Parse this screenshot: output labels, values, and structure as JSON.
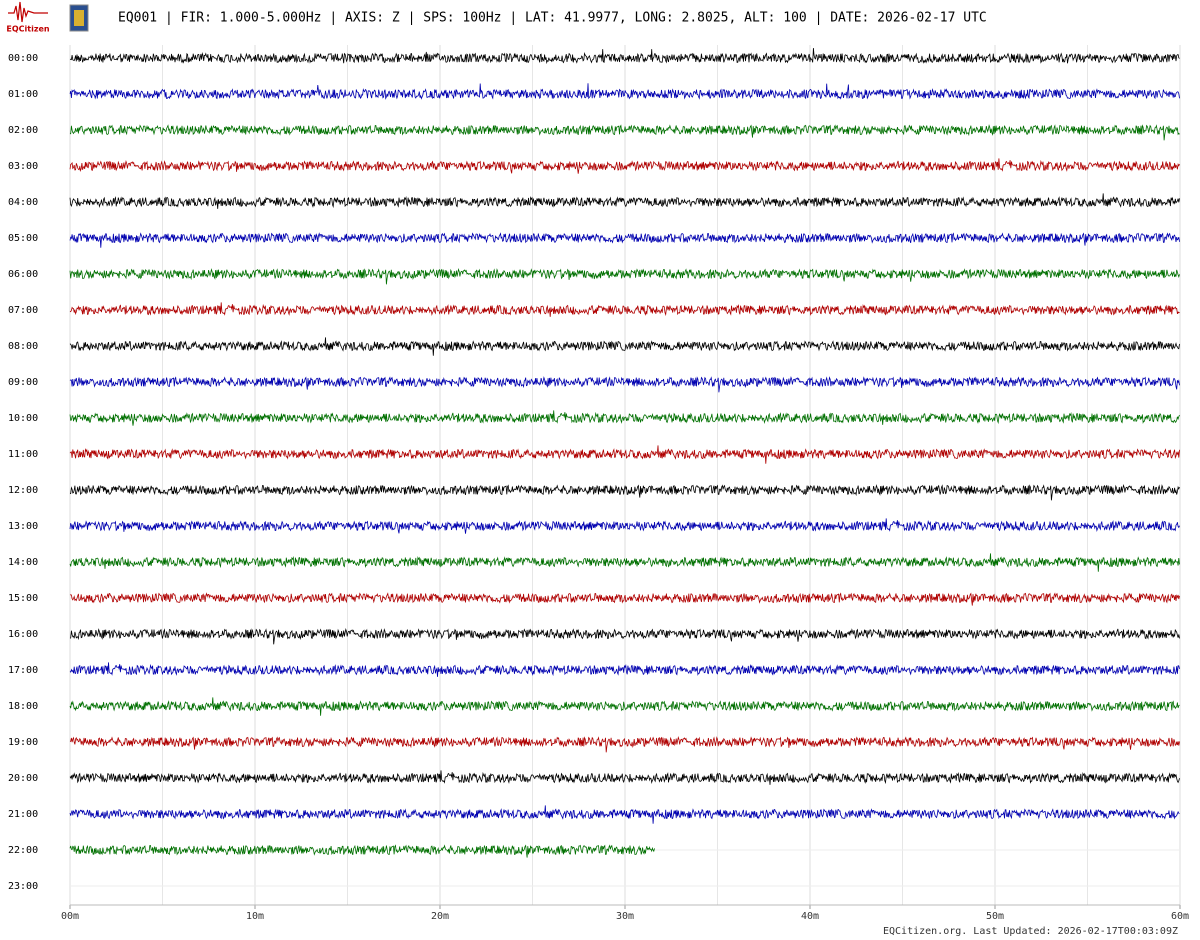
{
  "chart_data": {
    "type": "helicorder",
    "logo_text": "EQCitizen",
    "title": "EQ001 | FIR: 1.000-5.000Hz | AXIS: Z | SPS: 100Hz | LAT: 41.9977, LONG: 2.8025, ALT: 100 | DATE: 2026-02-17 UTC",
    "footer": "EQCitizen.org. Last Updated: 2026-02-17T00:03:09Z",
    "colors": [
      "#000000",
      "#0000b0",
      "#007000",
      "#b00000"
    ],
    "xlim": [
      0,
      60
    ],
    "xticks": [
      {
        "value": 0,
        "label": "00m"
      },
      {
        "value": 10,
        "label": "10m"
      },
      {
        "value": 20,
        "label": "20m"
      },
      {
        "value": 30,
        "label": "30m"
      },
      {
        "value": 40,
        "label": "40m"
      },
      {
        "value": 50,
        "label": "50m"
      },
      {
        "value": 60,
        "label": "60m"
      }
    ],
    "grid": true,
    "rows": [
      {
        "label": "00:00",
        "end": 60
      },
      {
        "label": "01:00",
        "end": 60
      },
      {
        "label": "02:00",
        "end": 60
      },
      {
        "label": "03:00",
        "end": 60
      },
      {
        "label": "04:00",
        "end": 60
      },
      {
        "label": "05:00",
        "end": 60
      },
      {
        "label": "06:00",
        "end": 60
      },
      {
        "label": "07:00",
        "end": 60
      },
      {
        "label": "08:00",
        "end": 60
      },
      {
        "label": "09:00",
        "end": 60
      },
      {
        "label": "10:00",
        "end": 60
      },
      {
        "label": "11:00",
        "end": 60
      },
      {
        "label": "12:00",
        "end": 60
      },
      {
        "label": "13:00",
        "end": 60
      },
      {
        "label": "14:00",
        "end": 60
      },
      {
        "label": "15:00",
        "end": 60
      },
      {
        "label": "16:00",
        "end": 60
      },
      {
        "label": "17:00",
        "end": 60
      },
      {
        "label": "18:00",
        "end": 60
      },
      {
        "label": "19:00",
        "end": 60
      },
      {
        "label": "20:00",
        "end": 60
      },
      {
        "label": "21:00",
        "end": 60
      },
      {
        "label": "22:00",
        "end": 31.6
      },
      {
        "label": "23:00",
        "end": null
      }
    ]
  }
}
